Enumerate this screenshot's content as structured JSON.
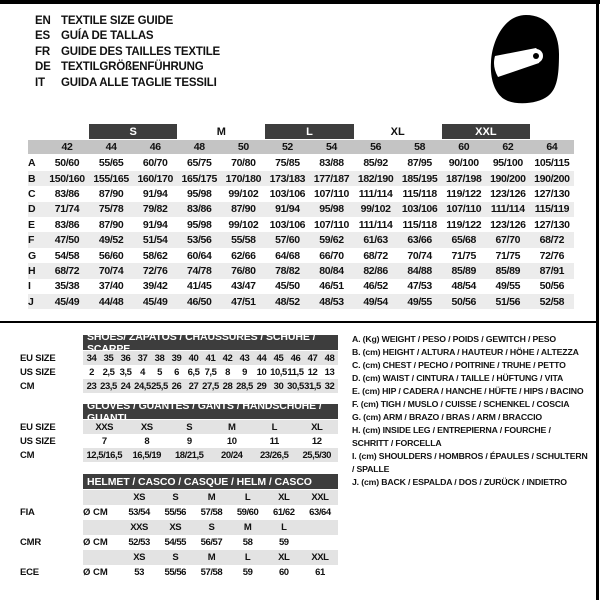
{
  "colors": {
    "accent_dark": "#3d3d3d",
    "header_gray": "#c4c4c4",
    "stripe_gray": "#ececec",
    "row_gray": "#e3e3e3",
    "border_black": "#000000"
  },
  "header": {
    "languages": [
      {
        "code": "EN",
        "text": "TEXTILE SIZE GUIDE"
      },
      {
        "code": "ES",
        "text": "GUÍA DE TALLAS"
      },
      {
        "code": "FR",
        "text": "GUIDE DES TAILLES TEXTILE"
      },
      {
        "code": "DE",
        "text": "TEXTILGRÖßENFÜHRUNG"
      },
      {
        "code": "IT",
        "text": "GUIDA ALLE TAGLIE TESSILI"
      }
    ],
    "icon": "helmet-icon"
  },
  "size_table": {
    "groups": [
      {
        "label": "",
        "span": 1,
        "dark": false
      },
      {
        "label": "S",
        "span": 2,
        "dark": true
      },
      {
        "label": "M",
        "span": 2,
        "dark": false
      },
      {
        "label": "L",
        "span": 2,
        "dark": true
      },
      {
        "label": "XL",
        "span": 2,
        "dark": false
      },
      {
        "label": "XXL",
        "span": 2,
        "dark": true
      },
      {
        "label": "",
        "span": 1,
        "dark": false
      }
    ],
    "columns": [
      "42",
      "44",
      "46",
      "48",
      "50",
      "52",
      "54",
      "56",
      "58",
      "60",
      "62",
      "64"
    ],
    "rows": [
      {
        "label": "A",
        "values": [
          "50/60",
          "55/65",
          "60/70",
          "65/75",
          "70/80",
          "75/85",
          "83/88",
          "85/92",
          "87/95",
          "90/100",
          "95/100",
          "105/115"
        ]
      },
      {
        "label": "B",
        "values": [
          "150/160",
          "155/165",
          "160/170",
          "165/175",
          "170/180",
          "173/183",
          "177/187",
          "182/190",
          "185/195",
          "187/198",
          "190/200",
          "190/200"
        ]
      },
      {
        "label": "C",
        "values": [
          "83/86",
          "87/90",
          "91/94",
          "95/98",
          "99/102",
          "103/106",
          "107/110",
          "111/114",
          "115/118",
          "119/122",
          "123/126",
          "127/130"
        ]
      },
      {
        "label": "D",
        "values": [
          "71/74",
          "75/78",
          "79/82",
          "83/86",
          "87/90",
          "91/94",
          "95/98",
          "99/102",
          "103/106",
          "107/110",
          "111/114",
          "115/119"
        ]
      },
      {
        "label": "E",
        "values": [
          "83/86",
          "87/90",
          "91/94",
          "95/98",
          "99/102",
          "103/106",
          "107/110",
          "111/114",
          "115/118",
          "119/122",
          "123/126",
          "127/130"
        ]
      },
      {
        "label": "F",
        "values": [
          "47/50",
          "49/52",
          "51/54",
          "53/56",
          "55/58",
          "57/60",
          "59/62",
          "61/63",
          "63/66",
          "65/68",
          "67/70",
          "68/72"
        ]
      },
      {
        "label": "G",
        "values": [
          "54/58",
          "56/60",
          "58/62",
          "60/64",
          "62/66",
          "64/68",
          "66/70",
          "68/72",
          "70/74",
          "71/75",
          "71/75",
          "72/76"
        ]
      },
      {
        "label": "H",
        "values": [
          "68/72",
          "70/74",
          "72/76",
          "74/78",
          "76/80",
          "78/82",
          "80/84",
          "82/86",
          "84/88",
          "85/89",
          "85/89",
          "87/91"
        ]
      },
      {
        "label": "I",
        "values": [
          "35/38",
          "37/40",
          "39/42",
          "41/45",
          "43/47",
          "45/50",
          "46/51",
          "46/52",
          "47/53",
          "48/54",
          "49/55",
          "50/56"
        ]
      },
      {
        "label": "J",
        "values": [
          "45/49",
          "44/48",
          "45/49",
          "46/50",
          "47/51",
          "48/52",
          "48/53",
          "49/54",
          "49/55",
          "50/56",
          "51/56",
          "52/58"
        ]
      }
    ]
  },
  "shoes_table": {
    "title": "SHOES/ ZAPATOS / CHAUSSURES / SCHUHE / SCARPE",
    "rows": [
      {
        "label": "EU SIZE",
        "shaded": true,
        "values": [
          "34",
          "35",
          "36",
          "37",
          "38",
          "39",
          "40",
          "41",
          "42",
          "43",
          "44",
          "45",
          "46",
          "47",
          "48"
        ]
      },
      {
        "label": "US SIZE",
        "shaded": false,
        "values": [
          "2",
          "2,5",
          "3,5",
          "4",
          "5",
          "6",
          "6,5",
          "7,5",
          "8",
          "9",
          "10",
          "10,5",
          "11,5",
          "12",
          "13"
        ]
      },
      {
        "label": "CM",
        "shaded": true,
        "values": [
          "23",
          "23,5",
          "24",
          "24,5",
          "25,5",
          "26",
          "27",
          "27,5",
          "28",
          "28,5",
          "29",
          "30",
          "30,5",
          "31,5",
          "32"
        ]
      }
    ]
  },
  "gloves_table": {
    "title": "GLOVES / GUANTES / GANTS / HANDSCHUHE / GUANTI",
    "rows": [
      {
        "label": "EU SIZE",
        "shaded": true,
        "values": [
          "XXS",
          "XS",
          "S",
          "M",
          "L",
          "XL"
        ]
      },
      {
        "label": "US SIZE",
        "shaded": false,
        "values": [
          "7",
          "8",
          "9",
          "10",
          "11",
          "12"
        ]
      },
      {
        "label": "CM",
        "shaded": true,
        "values": [
          "12,5/16,5",
          "16,5/19",
          "18/21,5",
          "20/24",
          "23/26,5",
          "25,5/30"
        ]
      }
    ]
  },
  "helmet_table": {
    "title": "HELMET / CASCO / CASQUE / HELM / CASCO",
    "rows": [
      {
        "label": "",
        "lead": "",
        "shaded": true,
        "values": [
          "XS",
          "S",
          "M",
          "L",
          "XL",
          "XXL"
        ]
      },
      {
        "label": "FIA",
        "lead": "Ø CM",
        "shaded": false,
        "values": [
          "53/54",
          "55/56",
          "57/58",
          "59/60",
          "61/62",
          "63/64"
        ]
      },
      {
        "label": "",
        "lead": "",
        "shaded": true,
        "values": [
          "XXS",
          "XS",
          "S",
          "M",
          "L",
          ""
        ]
      },
      {
        "label": "CMR",
        "lead": "Ø CM",
        "shaded": false,
        "values": [
          "52/53",
          "54/55",
          "56/57",
          "58",
          "59",
          ""
        ]
      },
      {
        "label": "",
        "lead": "",
        "shaded": true,
        "values": [
          "XS",
          "S",
          "M",
          "L",
          "XL",
          "XXL"
        ]
      },
      {
        "label": "ECE",
        "lead": "Ø CM",
        "shaded": false,
        "values": [
          "53",
          "55/56",
          "57/58",
          "59",
          "60",
          "61"
        ]
      }
    ]
  },
  "legend": {
    "items": [
      "A. (Kg) WEIGHT / PESO / POIDS / GEWITCH / PESO",
      "B. (cm) HEIGHT / ALTURA / HAUTEUR / HÖHE / ALTEZZA",
      "C. (cm) CHEST / PECHO / POITRINE / TRUHE / PETTO",
      "D. (cm) WAIST / CINTURA / TAILLE / HÜFTUNG / VITA",
      "E. (cm) HIP / CADERA / HANCHE / HÜFTE / HIPS / BACINO",
      "F. (cm) TIGH / MUSLO / CUISSE / SCHENKEL / COSCIA",
      "G. (cm) ARM / BRAZO / BRAS / ARM / BRACCIO",
      "H. (cm) INSIDE LEG / ENTREPIERNA / FOURCHE / SCHRITT / FORCELLA",
      "I. (cm) SHOULDERS / HOMBROS / ÉPAULES / SCHULTERN / SPALLE",
      "J. (cm) BACK / ESPALDA / DOS / ZURÜCK / INDIETRO"
    ]
  }
}
